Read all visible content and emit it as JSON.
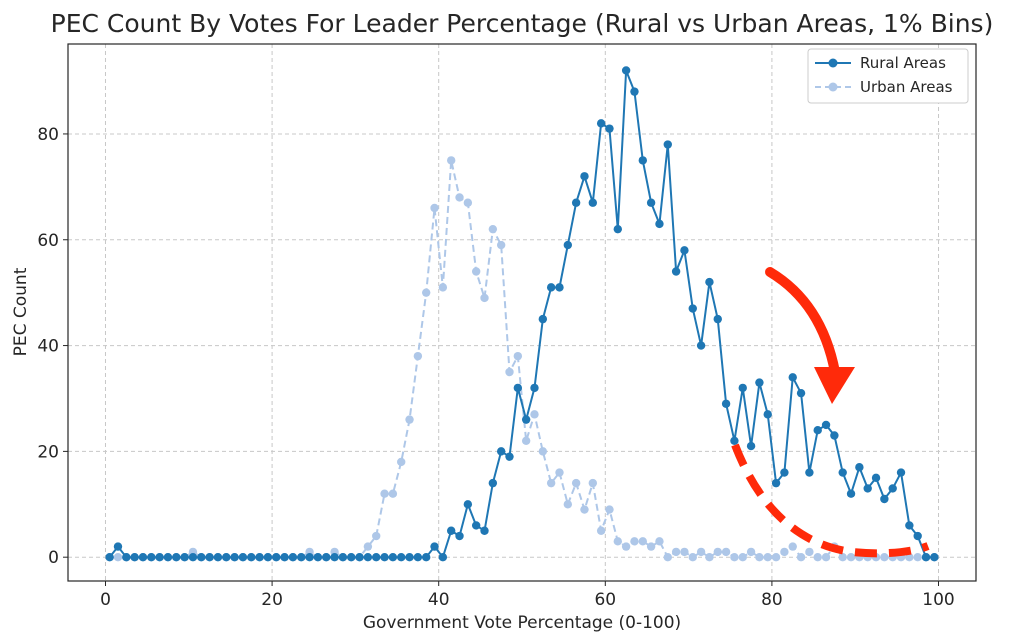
{
  "chart_data": {
    "type": "line",
    "title": "PEC Count By Votes For Leader Percentage (Rural vs Urban Areas, 1% Bins)",
    "xlabel": "Government Vote Percentage (0-100)",
    "ylabel": "PEC Count",
    "xlim": [
      -4.5,
      104.5
    ],
    "ylim": [
      -4.5,
      97
    ],
    "xticks": [
      0,
      20,
      40,
      60,
      80,
      100
    ],
    "yticks": [
      0,
      20,
      40,
      60,
      80
    ],
    "grid": true,
    "legend_position": "top-right",
    "x": [
      0.5,
      1.5,
      2.5,
      3.5,
      4.5,
      5.5,
      6.5,
      7.5,
      8.5,
      9.5,
      10.5,
      11.5,
      12.5,
      13.5,
      14.5,
      15.5,
      16.5,
      17.5,
      18.5,
      19.5,
      20.5,
      21.5,
      22.5,
      23.5,
      24.5,
      25.5,
      26.5,
      27.5,
      28.5,
      29.5,
      30.5,
      31.5,
      32.5,
      33.5,
      34.5,
      35.5,
      36.5,
      37.5,
      38.5,
      39.5,
      40.5,
      41.5,
      42.5,
      43.5,
      44.5,
      45.5,
      46.5,
      47.5,
      48.5,
      49.5,
      50.5,
      51.5,
      52.5,
      53.5,
      54.5,
      55.5,
      56.5,
      57.5,
      58.5,
      59.5,
      60.5,
      61.5,
      62.5,
      63.5,
      64.5,
      65.5,
      66.5,
      67.5,
      68.5,
      69.5,
      70.5,
      71.5,
      72.5,
      73.5,
      74.5,
      75.5,
      76.5,
      77.5,
      78.5,
      79.5,
      80.5,
      81.5,
      82.5,
      83.5,
      84.5,
      85.5,
      86.5,
      87.5,
      88.5,
      89.5,
      90.5,
      91.5,
      92.5,
      93.5,
      94.5,
      95.5,
      96.5,
      97.5,
      98.5,
      99.5
    ],
    "series": [
      {
        "name": "Rural Areas",
        "color": "#1f77b4",
        "style": "solid",
        "values": [
          0,
          2,
          0,
          0,
          0,
          0,
          0,
          0,
          0,
          0,
          0,
          0,
          0,
          0,
          0,
          0,
          0,
          0,
          0,
          0,
          0,
          0,
          0,
          0,
          0,
          0,
          0,
          0,
          0,
          0,
          0,
          0,
          0,
          0,
          0,
          0,
          0,
          0,
          0,
          2,
          0,
          5,
          4,
          10,
          6,
          5,
          14,
          20,
          19,
          32,
          26,
          32,
          45,
          51,
          51,
          59,
          67,
          72,
          67,
          82,
          81,
          62,
          92,
          88,
          75,
          67,
          63,
          78,
          54,
          58,
          47,
          40,
          52,
          45,
          29,
          22,
          32,
          21,
          33,
          27,
          14,
          16,
          34,
          31,
          16,
          24,
          25,
          23,
          16,
          12,
          17,
          13,
          15,
          11,
          13,
          16,
          6,
          4,
          0,
          0
        ]
      },
      {
        "name": "Urban Areas",
        "color": "#aec7e8",
        "style": "dashed",
        "values": [
          0,
          0,
          0,
          0,
          0,
          0,
          0,
          0,
          0,
          0,
          1,
          0,
          0,
          0,
          0,
          0,
          0,
          0,
          0,
          0,
          0,
          0,
          0,
          0,
          1,
          0,
          0,
          1,
          0,
          0,
          0,
          2,
          4,
          12,
          12,
          18,
          26,
          38,
          50,
          66,
          51,
          75,
          68,
          67,
          54,
          49,
          62,
          59,
          35,
          38,
          22,
          27,
          20,
          14,
          16,
          10,
          14,
          9,
          14,
          5,
          9,
          3,
          2,
          3,
          3,
          2,
          3,
          0,
          1,
          1,
          0,
          1,
          0,
          1,
          1,
          0,
          0,
          1,
          0,
          0,
          0,
          1,
          2,
          0,
          1,
          0,
          0,
          2,
          0,
          0,
          0,
          0,
          0,
          0,
          0,
          0,
          0,
          0,
          0,
          0
        ]
      }
    ],
    "annotations": [
      {
        "type": "arrow",
        "color": "#ff2a0a",
        "description": "red curved arrow pointing down toward high-percentage tail"
      },
      {
        "type": "dashed-curve",
        "color": "#ff2a0a",
        "description": "thick red dashed curve tracing expected tail from about 76% to 99%"
      }
    ]
  }
}
